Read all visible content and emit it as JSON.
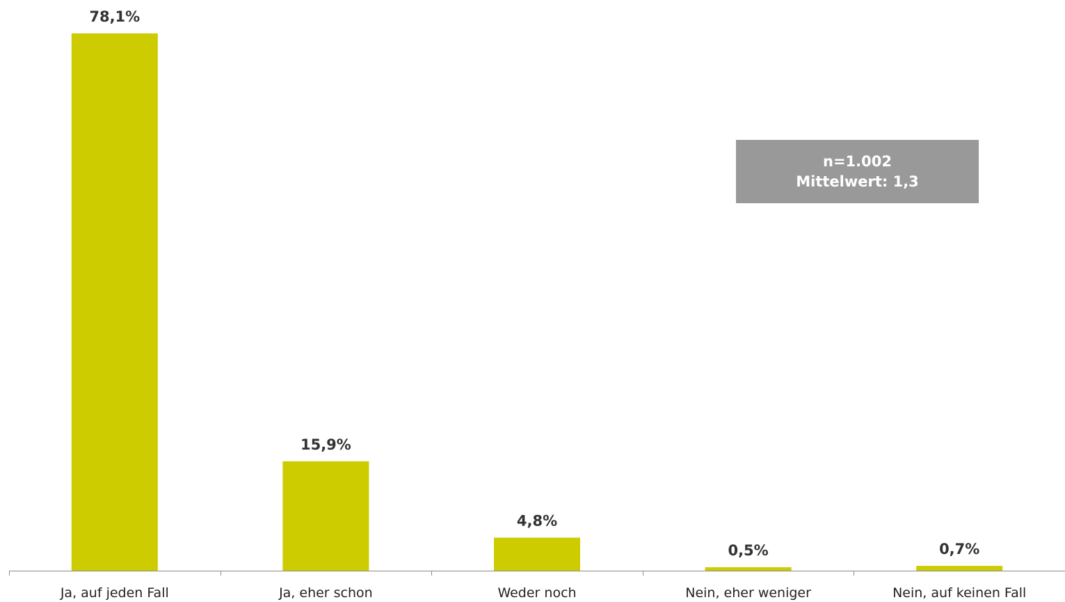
{
  "chart_data": {
    "type": "bar",
    "categories": [
      "Ja, auf jeden Fall",
      "Ja, eher schon",
      "Weder noch",
      "Nein, eher weniger",
      "Nein, auf keinen Fall"
    ],
    "values": [
      78.1,
      15.9,
      4.8,
      0.5,
      0.7
    ],
    "value_labels": [
      "78,1%",
      "15,9%",
      "4,8%",
      "0,5%",
      "0,7%"
    ],
    "title": "",
    "xlabel": "",
    "ylabel": "",
    "ylim": [
      0,
      78.1
    ],
    "grid": false,
    "bar_color": "#CCCC00",
    "annotation": {
      "line1": "n=1.002",
      "line2": "Mittelwert: 1,3",
      "background": "#999999"
    }
  }
}
